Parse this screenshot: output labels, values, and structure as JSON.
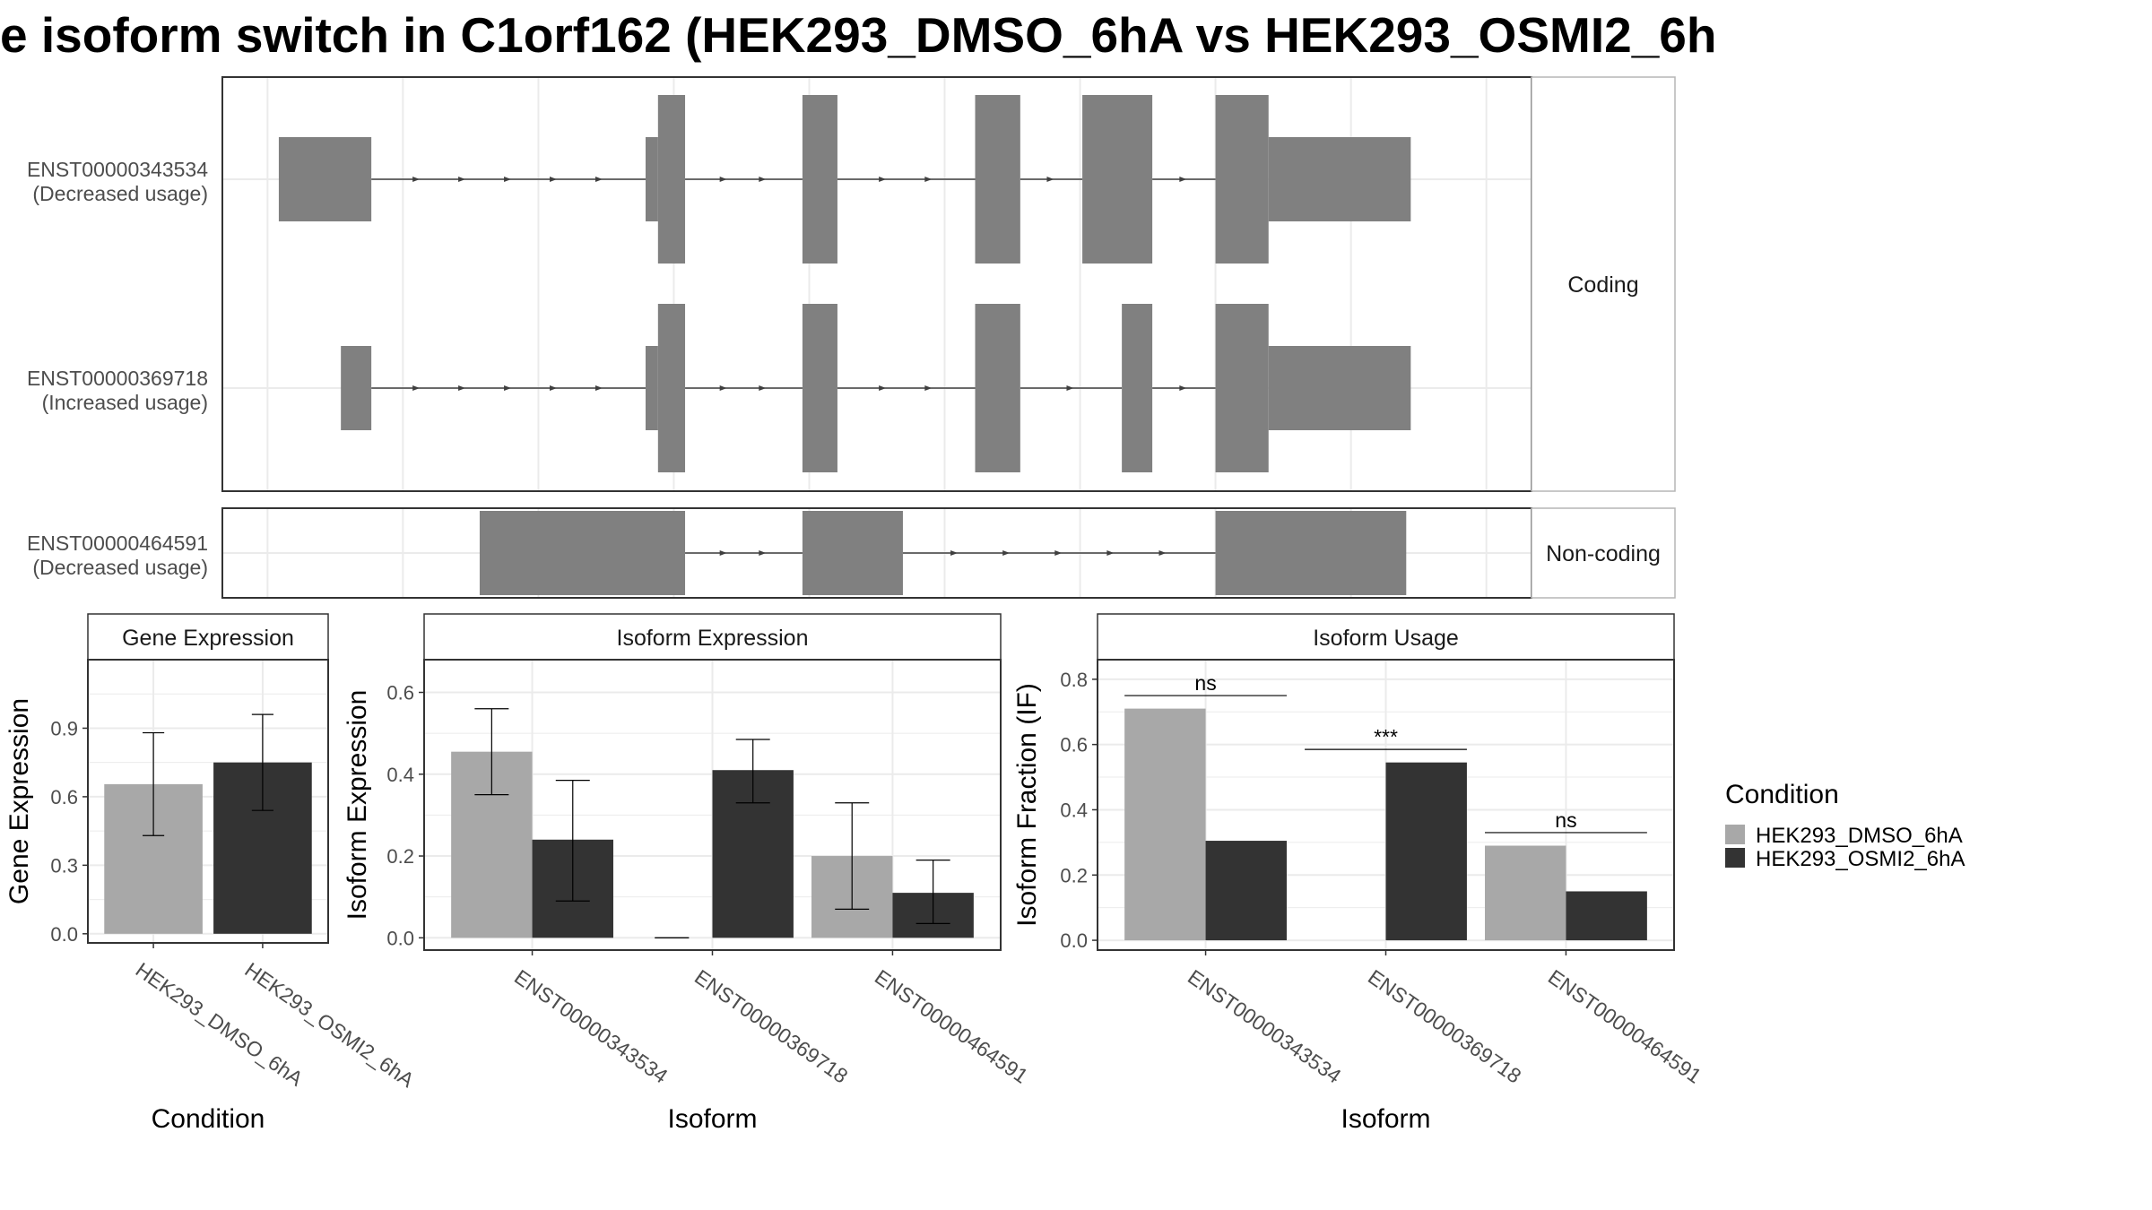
{
  "title": "e isoform switch in C1orf162 (HEK293_DMSO_6hA vs HEK293_OSMI2_6h",
  "colors": {
    "exon": "#808080",
    "intron": "#3f3f3f",
    "dmso": "#a8a8a8",
    "osmi": "#333333",
    "grid": "#ebebeb",
    "panel_border": "#333333",
    "strip_border": "#b5b5b5"
  },
  "structure": {
    "facets": [
      {
        "label": "Coding",
        "isoforms": [
          {
            "id": "ENST00000343534",
            "usage": "(Decreased usage)",
            "exons": [
              [
                50,
                132,
                "utr"
              ],
              [
                375,
                386,
                "utr"
              ],
              [
                386,
                410,
                "cds"
              ],
              [
                514,
                545,
                "cds"
              ],
              [
                667,
                707,
                "cds"
              ],
              [
                762,
                824,
                "cds"
              ],
              [
                880,
                927,
                "cds"
              ],
              [
                927,
                1053,
                "utr"
              ]
            ]
          },
          {
            "id": "ENST00000369718",
            "usage": "(Increased usage)",
            "exons": [
              [
                105,
                132,
                "utr"
              ],
              [
                375,
                386,
                "utr"
              ],
              [
                386,
                410,
                "cds"
              ],
              [
                514,
                545,
                "cds"
              ],
              [
                667,
                707,
                "cds"
              ],
              [
                797,
                824,
                "cds"
              ],
              [
                880,
                927,
                "cds"
              ],
              [
                927,
                1053,
                "utr"
              ]
            ]
          }
        ]
      },
      {
        "label": "Non-coding",
        "isoforms": [
          {
            "id": "ENST00000464591",
            "usage": "(Decreased usage)",
            "exons": [
              [
                228,
                410,
                "nc"
              ],
              [
                514,
                603,
                "nc"
              ],
              [
                880,
                1049,
                "nc"
              ]
            ]
          }
        ]
      }
    ]
  },
  "chart_data": [
    {
      "type": "bar",
      "title": "Gene Expression",
      "xlabel": "Condition",
      "ylabel": "Gene Expression",
      "categories": [
        "HEK293_DMSO_6hA",
        "HEK293_OSMI2_6hA"
      ],
      "values": [
        0.655,
        0.75
      ],
      "errors": [
        [
          0.43,
          0.88
        ],
        [
          0.54,
          0.96
        ]
      ],
      "ylim": [
        -0.04,
        1.2
      ],
      "yticks": [
        0.0,
        0.3,
        0.6,
        0.9
      ],
      "ytick_labels": [
        "0.0",
        "0.3",
        "0.6",
        "0.9"
      ]
    },
    {
      "type": "bar",
      "title": "Isoform Expression",
      "xlabel": "Isoform",
      "ylabel": "Isoform Expression",
      "categories": [
        "ENST00000343534",
        "ENST00000369718",
        "ENST00000464591"
      ],
      "series": [
        {
          "name": "HEK293_DMSO_6hA",
          "values": [
            0.455,
            0.0,
            0.2
          ],
          "errors": [
            [
              0.35,
              0.56
            ],
            [
              0.0,
              0.0
            ],
            [
              0.07,
              0.33
            ]
          ]
        },
        {
          "name": "HEK293_OSMI2_6hA",
          "values": [
            0.24,
            0.41,
            0.11
          ],
          "errors": [
            [
              0.09,
              0.385
            ],
            [
              0.33,
              0.485
            ],
            [
              0.035,
              0.19
            ]
          ]
        }
      ],
      "ylim": [
        -0.03,
        0.68
      ],
      "yticks": [
        0.0,
        0.2,
        0.4,
        0.6
      ],
      "ytick_labels": [
        "0.0",
        "0.2",
        "0.4",
        "0.6"
      ]
    },
    {
      "type": "bar",
      "title": "Isoform Usage",
      "xlabel": "Isoform",
      "ylabel": "Isoform Fraction (IF)",
      "categories": [
        "ENST00000343534",
        "ENST00000369718",
        "ENST00000464591"
      ],
      "series": [
        {
          "name": "HEK293_DMSO_6hA",
          "values": [
            0.71,
            0.0,
            0.29
          ]
        },
        {
          "name": "HEK293_OSMI2_6hA",
          "values": [
            0.305,
            0.545,
            0.15
          ]
        }
      ],
      "significance": [
        {
          "label": "ns",
          "y": 0.75
        },
        {
          "label": "***",
          "y": 0.585
        },
        {
          "label": "ns",
          "y": 0.33
        }
      ],
      "ylim": [
        -0.03,
        0.86
      ],
      "yticks": [
        0.0,
        0.2,
        0.4,
        0.6,
        0.8
      ],
      "ytick_labels": [
        "0.0",
        "0.2",
        "0.4",
        "0.6",
        "0.8"
      ]
    }
  ],
  "legend": {
    "title": "Condition",
    "position": "right",
    "items": [
      {
        "label": "HEK293_DMSO_6hA",
        "color": "#a8a8a8"
      },
      {
        "label": "HEK293_OSMI2_6hA",
        "color": "#333333"
      }
    ]
  }
}
